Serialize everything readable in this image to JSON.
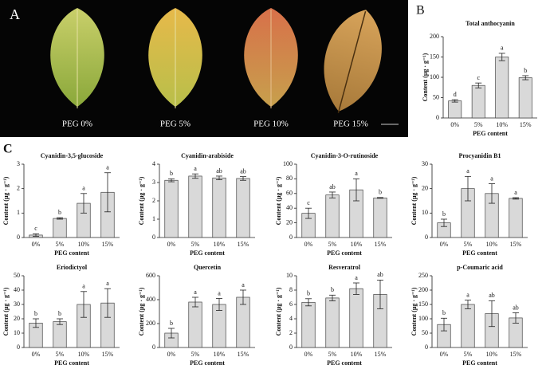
{
  "panel_a": {
    "label": "A",
    "captions": [
      "PEG 0%",
      "PEG 5%",
      "PEG 10%",
      "PEG 15%"
    ]
  },
  "panel_labels": [
    "B",
    "C"
  ],
  "chart_data": [
    {
      "type": "bar",
      "title": "Total anthocyanin",
      "xlabel": "PEG content",
      "ylabel": "Content (μg · g⁻¹)",
      "categories": [
        "0%",
        "5%",
        "10%",
        "15%"
      ],
      "values": [
        42,
        80,
        150,
        99
      ],
      "errors": [
        3,
        6,
        9,
        5
      ],
      "letters": [
        "d",
        "c",
        "a",
        "b"
      ],
      "color": "#d9d9d9",
      "ylim": [
        0,
        200
      ],
      "yticks": [
        0,
        50,
        100,
        150,
        200
      ]
    },
    {
      "type": "bar",
      "title": "Cyanidin-3,5-glucoside",
      "xlabel": "PEG content",
      "ylabel": "Content (μg · g⁻¹)",
      "categories": [
        "0%",
        "5%",
        "10%",
        "15%"
      ],
      "values": [
        0.1,
        0.78,
        1.4,
        1.85
      ],
      "errors": [
        0.05,
        0.03,
        0.4,
        0.8
      ],
      "letters": [
        "c",
        "b",
        "a",
        "a"
      ],
      "color": "#d9d9d9",
      "ylim": [
        0,
        3
      ],
      "yticks": [
        0,
        1,
        2,
        3
      ]
    },
    {
      "type": "bar",
      "title": "Cyanidin-arabiside",
      "xlabel": "PEG content",
      "ylabel": "Content (μg · g⁻¹)",
      "categories": [
        "0%",
        "5%",
        "10%",
        "15%"
      ],
      "values": [
        3.12,
        3.35,
        3.25,
        3.22
      ],
      "errors": [
        0.08,
        0.12,
        0.1,
        0.1
      ],
      "letters": [
        "b",
        "a",
        "ab",
        "ab"
      ],
      "color": "#d9d9d9",
      "ylim": [
        0,
        4
      ],
      "yticks": [
        0,
        1,
        2,
        3,
        4
      ]
    },
    {
      "type": "bar",
      "title": "Cyanidin-3-O-rutinoside",
      "xlabel": "PEG content",
      "ylabel": "Content (μg · g⁻¹)",
      "categories": [
        "0%",
        "5%",
        "10%",
        "15%"
      ],
      "values": [
        33,
        58,
        65,
        54
      ],
      "errors": [
        7,
        4,
        15,
        0.5
      ],
      "letters": [
        "c",
        "ab",
        "a",
        "b"
      ],
      "color": "#d9d9d9",
      "ylim": [
        0,
        100
      ],
      "yticks": [
        0,
        20,
        40,
        60,
        80,
        100
      ]
    },
    {
      "type": "bar",
      "title": "Procyanidin B1",
      "xlabel": "PEG content",
      "ylabel": "Content (μg · g⁻¹)",
      "categories": [
        "0%",
        "5%",
        "10%",
        "15%"
      ],
      "values": [
        6,
        20,
        18,
        16
      ],
      "errors": [
        1.5,
        5,
        4,
        0.3
      ],
      "letters": [
        "b",
        "a",
        "a",
        "a"
      ],
      "color": "#d9d9d9",
      "ylim": [
        0,
        30
      ],
      "yticks": [
        0,
        10,
        20,
        30
      ]
    },
    {
      "type": "bar",
      "title": "Eriodictyol",
      "xlabel": "PEG content",
      "ylabel": "Content (μg · g⁻¹)",
      "categories": [
        "0%",
        "5%",
        "10%",
        "15%"
      ],
      "values": [
        17,
        18,
        30,
        31
      ],
      "errors": [
        3,
        2,
        9,
        10
      ],
      "letters": [
        "b",
        "b",
        "a",
        "a"
      ],
      "color": "#d9d9d9",
      "ylim": [
        0,
        50
      ],
      "yticks": [
        0,
        10,
        20,
        30,
        40,
        50
      ]
    },
    {
      "type": "bar",
      "title": "Quercetin",
      "xlabel": "PEG content",
      "ylabel": "Content (μg · g⁻¹)",
      "categories": [
        "0%",
        "5%",
        "10%",
        "15%"
      ],
      "values": [
        120,
        380,
        360,
        420
      ],
      "errors": [
        40,
        40,
        50,
        60
      ],
      "letters": [
        "b",
        "a",
        "a",
        "a"
      ],
      "color": "#d9d9d9",
      "ylim": [
        0,
        600
      ],
      "yticks": [
        0,
        200,
        400,
        600
      ]
    },
    {
      "type": "bar",
      "title": "Resveratrol",
      "xlabel": "PEG content",
      "ylabel": "Content (μg · g⁻¹)",
      "categories": [
        "0%",
        "5%",
        "10%",
        "15%"
      ],
      "values": [
        6.3,
        6.9,
        8.2,
        7.4
      ],
      "errors": [
        0.5,
        0.4,
        0.8,
        2
      ],
      "letters": [
        "b",
        "b",
        "a",
        "ab"
      ],
      "color": "#d9d9d9",
      "ylim": [
        0,
        10
      ],
      "yticks": [
        0,
        2,
        4,
        6,
        8,
        10
      ]
    },
    {
      "type": "bar",
      "title": "p-Coumaric acid",
      "xlabel": "PEG content",
      "ylabel": "Content (μg · g⁻¹)",
      "categories": [
        "0%",
        "5%",
        "10%",
        "15%"
      ],
      "values": [
        80,
        150,
        118,
        103
      ],
      "errors": [
        22,
        15,
        45,
        18
      ],
      "letters": [
        "b",
        "a",
        "ab",
        "ab"
      ],
      "color": "#d9d9d9",
      "ylim": [
        0,
        250
      ],
      "yticks": [
        0,
        50,
        100,
        150,
        200,
        250
      ]
    }
  ]
}
